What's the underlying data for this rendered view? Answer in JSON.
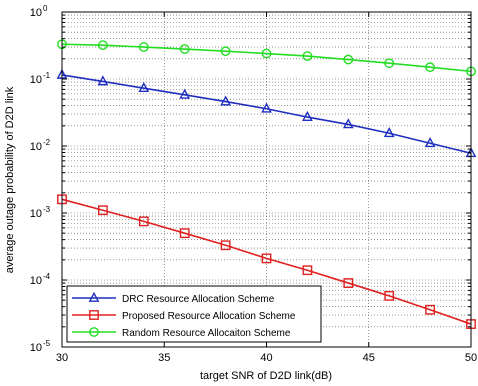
{
  "chart_data": {
    "type": "line",
    "xlabel": "target SNR of D2D link(dB)",
    "ylabel": "average outage probability of D2D link",
    "xlim": [
      30,
      50
    ],
    "ylim": [
      1e-05,
      1
    ],
    "yscale": "log",
    "grid": "dotted, with minor log grid",
    "legend_position": "bottom-left",
    "x_ticks": [
      "30",
      "35",
      "40",
      "45",
      "50"
    ],
    "y_ticks": [
      {
        "base": "10",
        "exp": "0",
        "value": 1
      },
      {
        "base": "10",
        "exp": "-1",
        "value": 0.1
      },
      {
        "base": "10",
        "exp": "-2",
        "value": 0.01
      },
      {
        "base": "10",
        "exp": "-3",
        "value": 0.001
      },
      {
        "base": "10",
        "exp": "-4",
        "value": 0.0001
      },
      {
        "base": "10",
        "exp": "-5",
        "value": 1e-05
      }
    ],
    "x": [
      30,
      32,
      34,
      36,
      38,
      40,
      42,
      44,
      46,
      48,
      50
    ],
    "series": [
      {
        "name": "DRC Resource Allocation Scheme",
        "color": "#1f2fbf",
        "marker": "triangle",
        "values": [
          0.115,
          0.092,
          0.073,
          0.058,
          0.046,
          0.036,
          0.027,
          0.021,
          0.0155,
          0.011,
          0.0078
        ]
      },
      {
        "name": "Proposed Resource Allocation Scheme",
        "color": "#e02020",
        "marker": "square",
        "values": [
          0.0016,
          0.0011,
          0.00075,
          0.0005,
          0.00033,
          0.00021,
          0.00014,
          9e-05,
          5.8e-05,
          3.6e-05,
          2.2e-05
        ]
      },
      {
        "name": "Random Resource Allocaiton Scheme",
        "color": "#22dd22",
        "marker": "circle",
        "values": [
          0.33,
          0.32,
          0.3,
          0.28,
          0.26,
          0.24,
          0.22,
          0.195,
          0.172,
          0.15,
          0.13
        ]
      }
    ]
  }
}
